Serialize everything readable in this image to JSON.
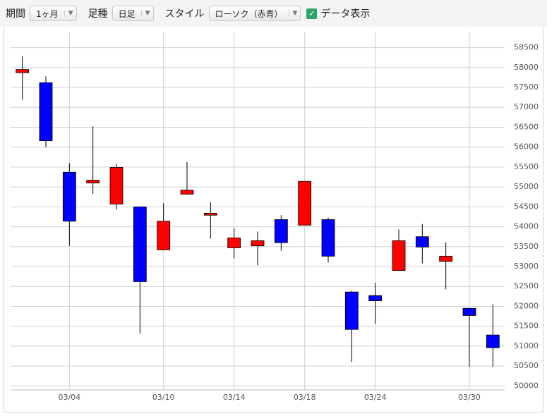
{
  "toolbar": {
    "period_label": "期間",
    "period_value": "1ヶ月",
    "bar_label": "足種",
    "bar_value": "日足",
    "style_label": "スタイル",
    "style_value": "ローソク（赤青）",
    "show_data": "データ表示"
  },
  "chart_data": {
    "type": "candlestick",
    "categories": [
      null,
      null,
      "03/04",
      null,
      null,
      null,
      "03/10",
      null,
      null,
      "03/14",
      null,
      null,
      "03/18",
      null,
      null,
      "03/24",
      null,
      null,
      null,
      "03/30",
      null
    ],
    "series": {
      "open": [
        57870,
        57620,
        55370,
        55100,
        54570,
        54500,
        53420,
        54820,
        54290,
        53470,
        53520,
        54180,
        54040,
        54180,
        52360,
        52270,
        52900,
        53750,
        53130,
        51950,
        51280
      ],
      "high": [
        58280,
        57780,
        55600,
        56520,
        55580,
        54500,
        54590,
        55630,
        54620,
        53970,
        53880,
        54290,
        55140,
        54230,
        52390,
        52590,
        53930,
        54070,
        53610,
        51950,
        52050
      ],
      "low": [
        57190,
        56000,
        53520,
        54820,
        54430,
        51310,
        53420,
        54800,
        53700,
        53200,
        53030,
        53400,
        54040,
        53100,
        50600,
        51560,
        52900,
        53080,
        52430,
        50480,
        50480
      ],
      "close": [
        57950,
        56160,
        54140,
        55170,
        55490,
        52620,
        54140,
        54920,
        54340,
        53720,
        53650,
        53600,
        55140,
        53260,
        51420,
        52140,
        53650,
        53490,
        53260,
        51770,
        50960
      ]
    },
    "up_color": "#ff0000",
    "down_color": "#0000ff",
    "ylim": [
      49900,
      58900
    ],
    "yticks": [
      50000,
      50500,
      51000,
      51500,
      52000,
      52500,
      53000,
      53500,
      54000,
      54500,
      55000,
      55500,
      56000,
      56500,
      57000,
      57500,
      58000,
      58500
    ],
    "grid": true
  }
}
